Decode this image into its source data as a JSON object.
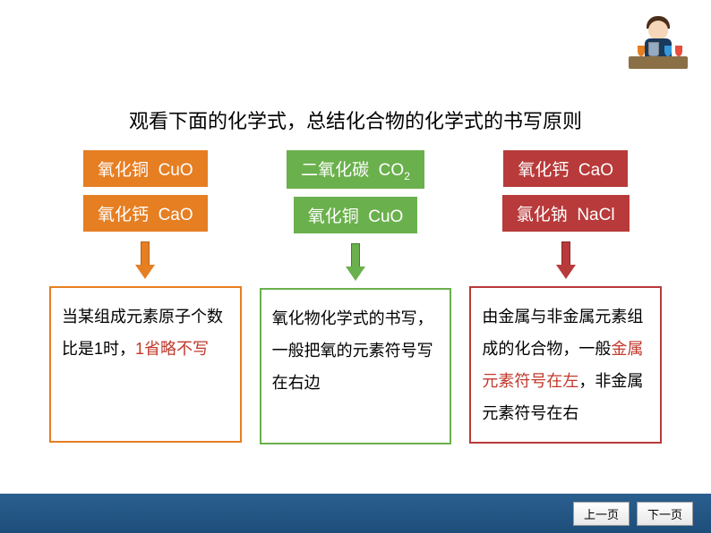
{
  "title": "观看下面的化学式，总结化合物的化学式的书写原则",
  "columns": [
    {
      "color": "#e67e22",
      "border_color": "#b8641a",
      "chip1_prefix": "氧化铜",
      "chip1_formula": "CuO",
      "chip1_sub": "",
      "chip2_prefix": "氧化钙",
      "chip2_formula": "CaO",
      "chip2_sub": "",
      "desc_before": "当某组成元素原子个数比是1时，",
      "desc_highlight": "1省略不写",
      "desc_after": ""
    },
    {
      "color": "#6ab04c",
      "border_color": "#4a7c2e",
      "chip1_prefix": "二氧化碳",
      "chip1_formula": "CO",
      "chip1_sub": "2",
      "chip2_prefix": "氧化铜",
      "chip2_formula": "CuO",
      "chip2_sub": "",
      "desc_before": "氧化物化学式的书写，一般把氧的元素符号写在右边",
      "desc_highlight": "",
      "desc_after": ""
    },
    {
      "color": "#b83a3a",
      "border_color": "#8b2626",
      "chip1_prefix": "氧化钙",
      "chip1_formula": "CaO",
      "chip1_sub": "",
      "chip2_prefix": "氯化钠",
      "chip2_formula": "NaCl",
      "chip2_sub": "",
      "desc_before": "由金属与非金属元素组成的化合物，一般",
      "desc_highlight": "金属元素符号在左",
      "desc_after": "，非金属元素符号在右"
    }
  ],
  "nav": {
    "prev": "上一页",
    "next": "下一页"
  }
}
